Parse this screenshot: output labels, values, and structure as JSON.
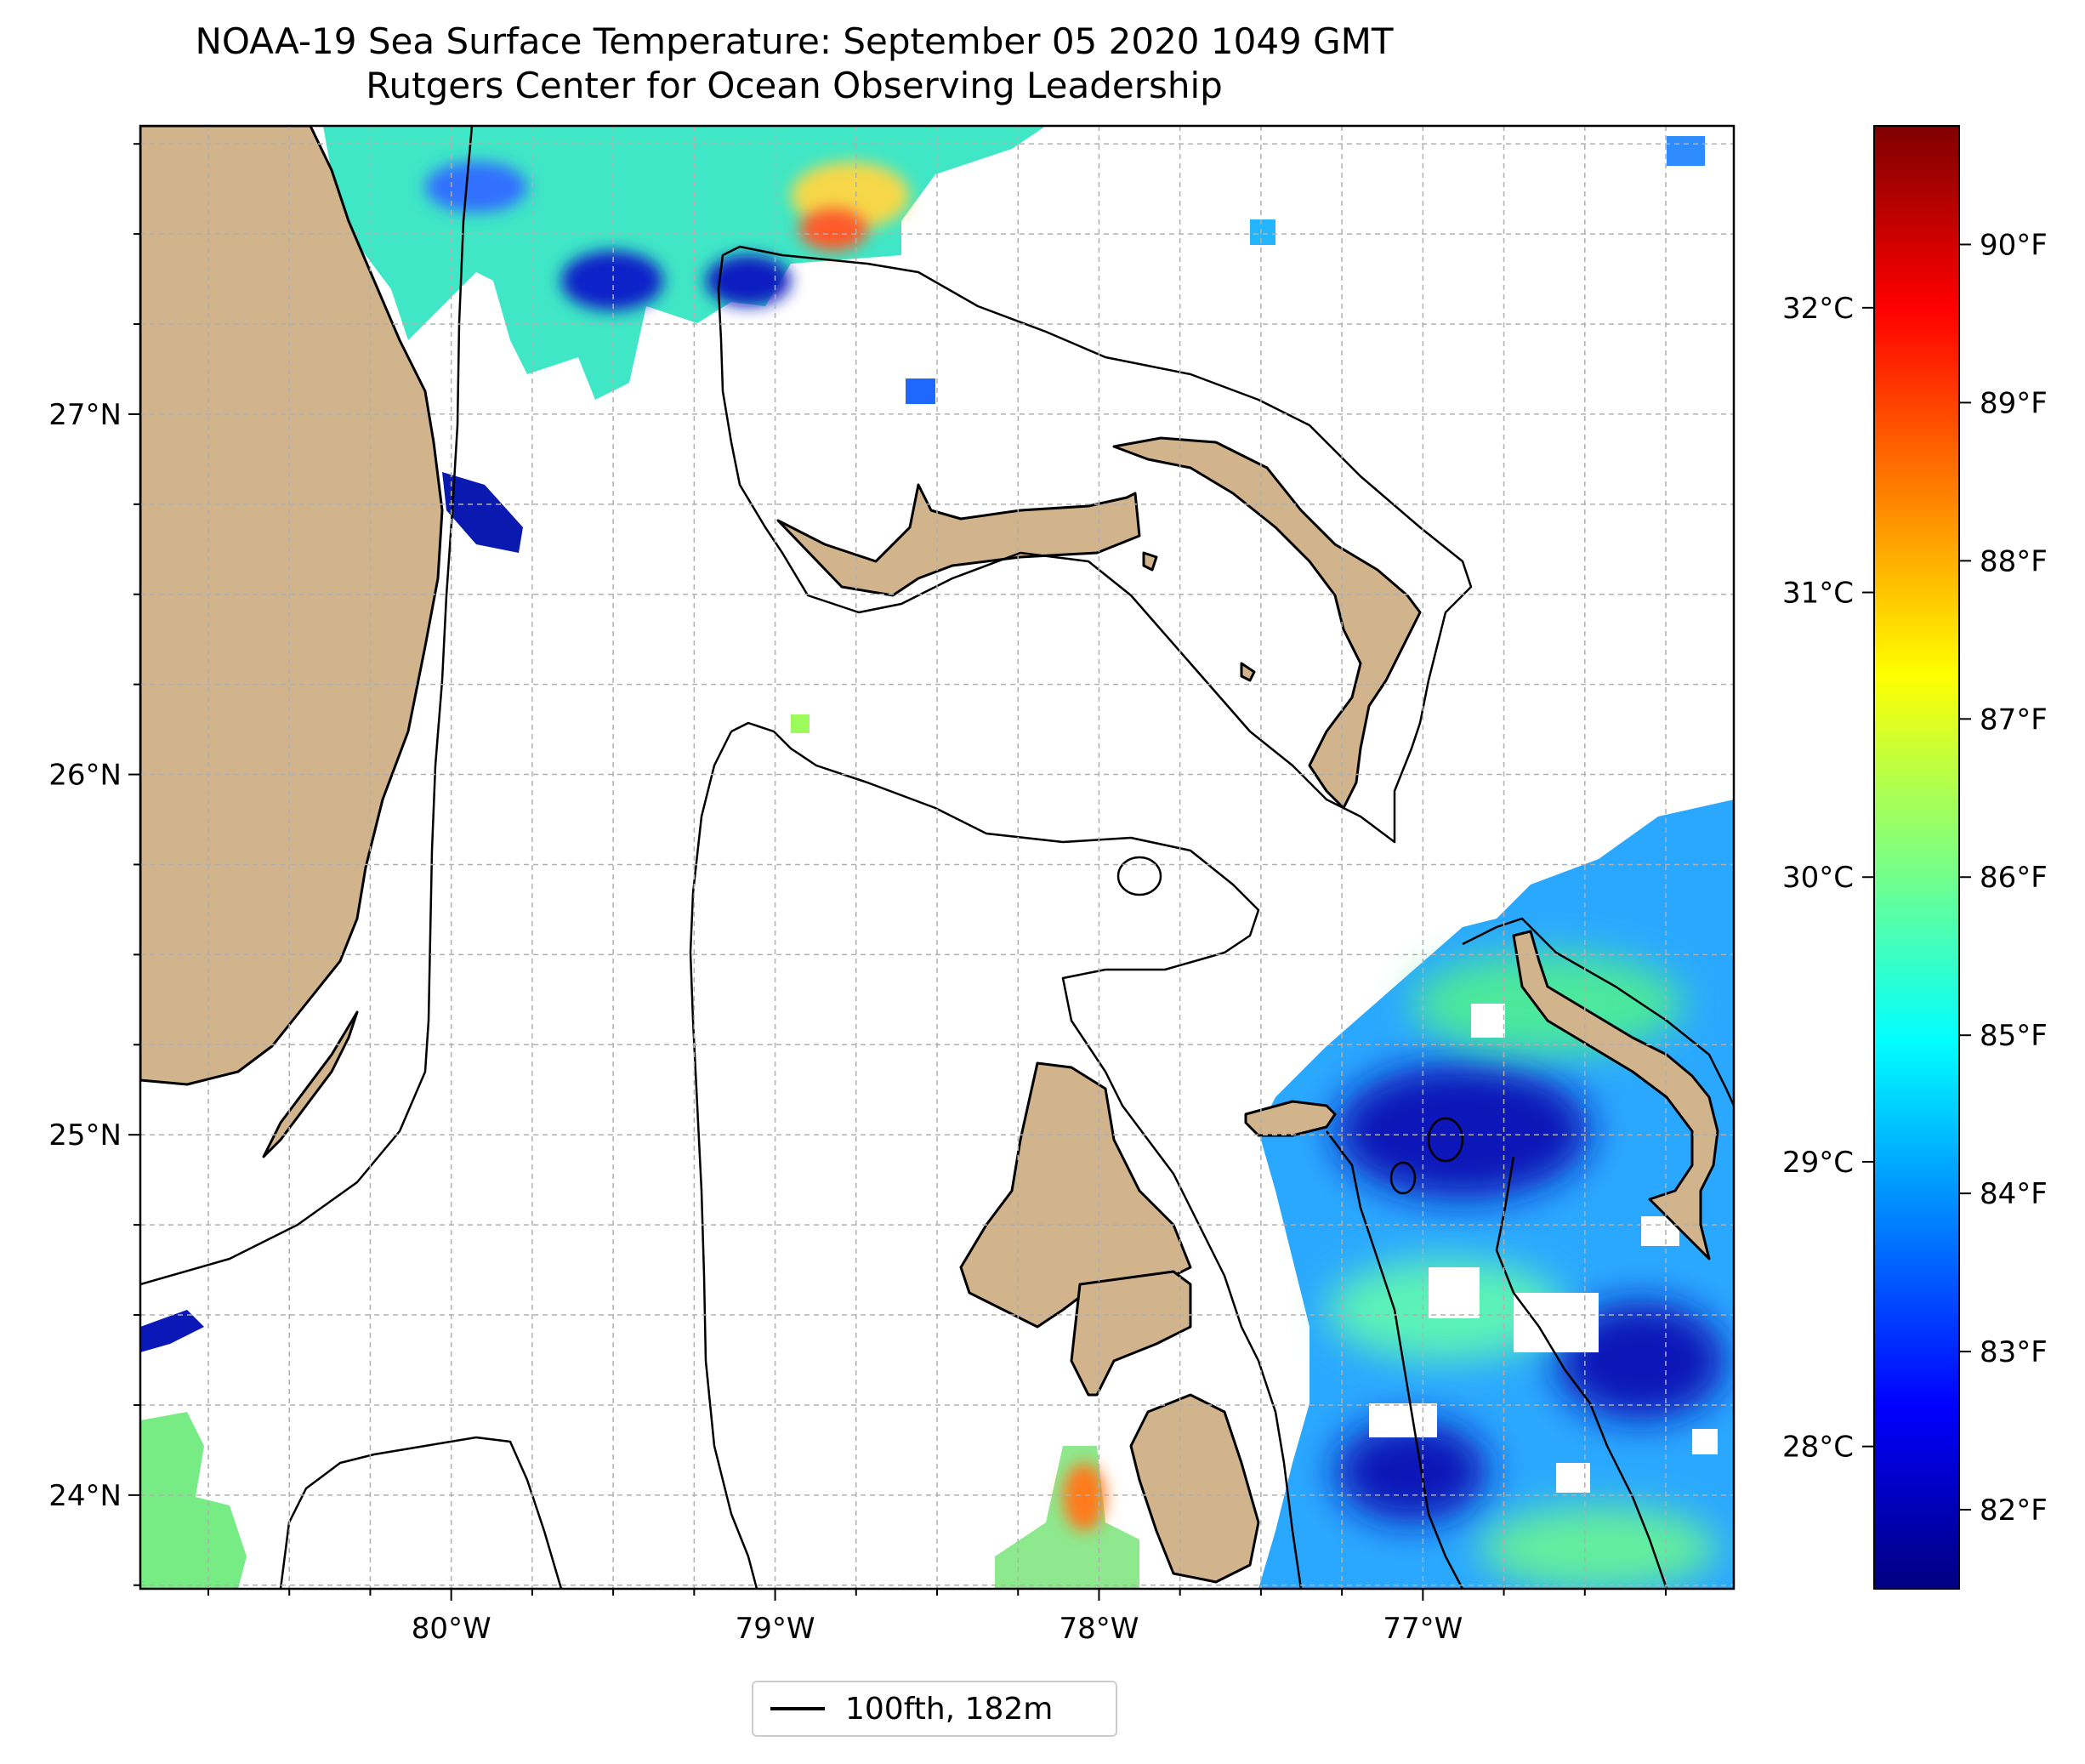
{
  "title": {
    "line1": "NOAA-19 Sea Surface Temperature: September 05 2020 1049 GMT",
    "line2": "Rutgers Center for Ocean Observing Leadership"
  },
  "map": {
    "lon_range": [
      -80.96,
      -76.04
    ],
    "lat_range": [
      23.74,
      27.8
    ],
    "lon_ticks": [
      "80°W",
      "79°W",
      "78°W",
      "77°W"
    ],
    "lat_ticks": [
      "27°N",
      "26°N",
      "25°N",
      "24°N"
    ],
    "lon_tick_values": [
      -80,
      -79,
      -78,
      -77
    ],
    "lat_tick_values": [
      27,
      26,
      25,
      24
    ],
    "gridlines": true,
    "land_color": "#d2b48c",
    "ocean_color": "#ffffff"
  },
  "colorbar": {
    "celsius_ticks": [
      "32°C",
      "31°C",
      "30°C",
      "29°C",
      "28°C"
    ],
    "celsius_values": [
      32,
      31,
      30,
      29,
      28
    ],
    "fahrenheit_ticks": [
      "90°F",
      "89°F",
      "88°F",
      "87°F",
      "86°F",
      "85°F",
      "84°F",
      "83°F",
      "82°F"
    ],
    "fahrenheit_values": [
      90,
      89,
      88,
      87,
      86,
      85,
      84,
      83,
      82
    ],
    "range_f": [
      81.5,
      90.75
    ],
    "colormap": "jet",
    "stops": [
      "#00007f",
      "#0000ff",
      "#007fff",
      "#00ffff",
      "#7fff7f",
      "#ffff00",
      "#ff7f00",
      "#ff0000",
      "#7f0000"
    ]
  },
  "legend": {
    "label": "100fth, 182m",
    "line_color": "#000000"
  }
}
